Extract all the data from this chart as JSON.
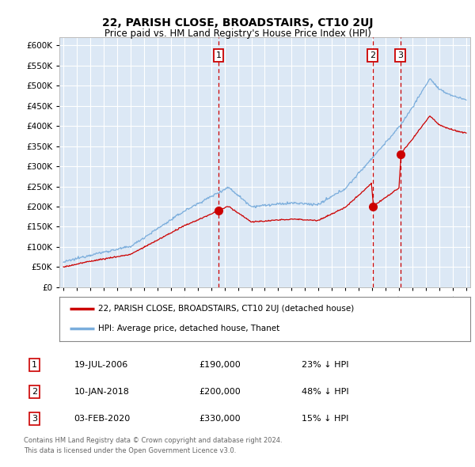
{
  "title": "22, PARISH CLOSE, BROADSTAIRS, CT10 2UJ",
  "subtitle": "Price paid vs. HM Land Registry's House Price Index (HPI)",
  "footer_line1": "Contains HM Land Registry data © Crown copyright and database right 2024.",
  "footer_line2": "This data is licensed under the Open Government Licence v3.0.",
  "legend_label_red": "22, PARISH CLOSE, BROADSTAIRS, CT10 2UJ (detached house)",
  "legend_label_blue": "HPI: Average price, detached house, Thanet",
  "sale_events": [
    {
      "num": 1,
      "date": "19-JUL-2006",
      "price": 190000,
      "note": "23% ↓ HPI",
      "x_year": 2006.55
    },
    {
      "num": 2,
      "date": "10-JAN-2018",
      "price": 200000,
      "note": "48% ↓ HPI",
      "x_year": 2018.03
    },
    {
      "num": 3,
      "date": "03-FEB-2020",
      "price": 330000,
      "note": "15% ↓ HPI",
      "x_year": 2020.09
    }
  ],
  "hpi_color": "#7aaddc",
  "sale_color": "#cc0000",
  "vline_color": "#cc0000",
  "background_color": "#ffffff",
  "plot_background": "#dce8f5",
  "grid_color": "#ffffff",
  "ylim": [
    0,
    620000
  ],
  "xlim_start": 1994.7,
  "xlim_end": 2025.3,
  "yticks": [
    0,
    50000,
    100000,
    150000,
    200000,
    250000,
    300000,
    350000,
    400000,
    450000,
    500000,
    550000,
    600000
  ],
  "ytick_labels": [
    "£0",
    "£50K",
    "£100K",
    "£150K",
    "£200K",
    "£250K",
    "£300K",
    "£350K",
    "£400K",
    "£450K",
    "£500K",
    "£550K",
    "£600K"
  ]
}
